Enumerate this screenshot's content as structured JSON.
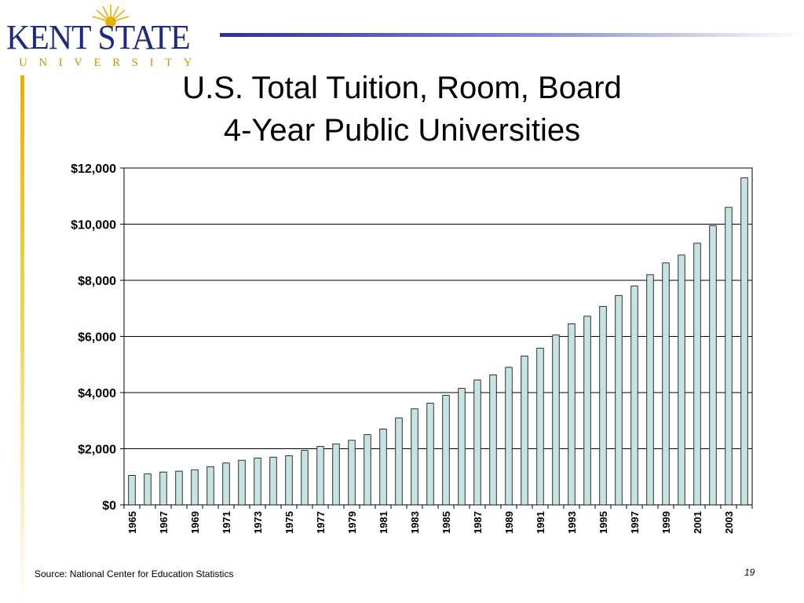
{
  "logo": {
    "name": "KENT STATE",
    "sub": "UNIVERSITY"
  },
  "slide": {
    "title_line1": "U.S. Total Tuition, Room, Board",
    "title_line2": "4-Year Public Universities",
    "source": "Source: National Center for Education Statistics",
    "page_number": "19"
  },
  "colors": {
    "bar_fill": "#c6e4e4",
    "bar_stroke": "#000000",
    "brand_blue": "#1f2a7a",
    "brand_gold": "#e8b000"
  },
  "chart_data": {
    "type": "bar",
    "title": "U.S. Total Tuition, Room, Board 4-Year Public Universities",
    "xlabel": "",
    "ylabel": "",
    "ylim": [
      0,
      12000
    ],
    "yticks": [
      "$0",
      "$2,000",
      "$4,000",
      "$6,000",
      "$8,000",
      "$10,000",
      "$12,000"
    ],
    "grid": true,
    "legend": "none",
    "categories": [
      "1965",
      "1966",
      "1967",
      "1968",
      "1969",
      "1970",
      "1971",
      "1972",
      "1973",
      "1974",
      "1975",
      "1976",
      "1977",
      "1978",
      "1979",
      "1980",
      "1981",
      "1982",
      "1983",
      "1984",
      "1985",
      "1986",
      "1987",
      "1988",
      "1989",
      "1990",
      "1991",
      "1992",
      "1993",
      "1994",
      "1995",
      "1996",
      "1997",
      "1998",
      "1999",
      "2000",
      "2001",
      "2002",
      "2003",
      "2004"
    ],
    "tick_labels": [
      "1965",
      "1967",
      "1969",
      "1971",
      "1973",
      "1975",
      "1977",
      "1979",
      "1981",
      "1983",
      "1985",
      "1987",
      "1989",
      "1991",
      "1993",
      "1995",
      "1997",
      "1999",
      "2001",
      "2003"
    ],
    "values": [
      1050,
      1100,
      1170,
      1200,
      1250,
      1360,
      1490,
      1590,
      1670,
      1700,
      1750,
      1940,
      2080,
      2170,
      2300,
      2500,
      2700,
      3100,
      3420,
      3620,
      3900,
      4150,
      4450,
      4630,
      4900,
      5300,
      5580,
      6050,
      6450,
      6720,
      7070,
      7460,
      7800,
      8200,
      8620,
      8900,
      9320,
      9950,
      10600,
      11650
    ]
  }
}
